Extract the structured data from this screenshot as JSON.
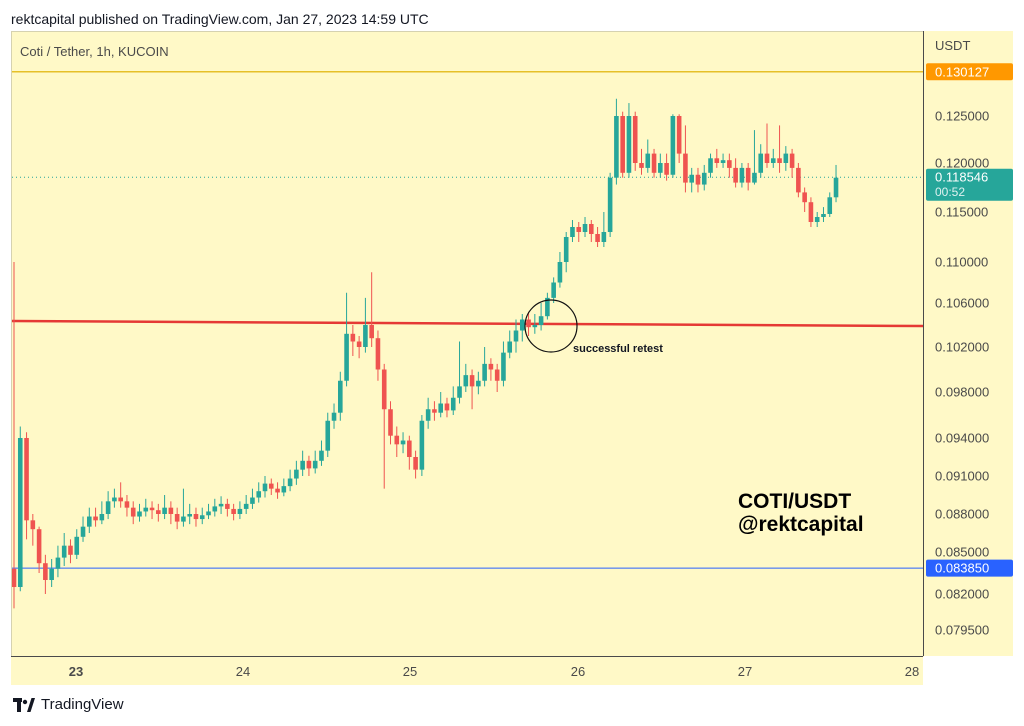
{
  "header": {
    "publisher_line": "rektcapital published on TradingView.com, Jan 27, 2023 14:59 UTC"
  },
  "symbol_line": "Coti / Tether, 1h, KUCOIN",
  "footer": {
    "brand": "TradingView",
    "logo_icon": "tradingview-logo-icon"
  },
  "colors": {
    "background": "#fff9c7",
    "up": "#26a69a",
    "down": "#ef5350",
    "resistance": "#e53935",
    "top_line": "#e6c028",
    "bottom_line": "#2962ff",
    "top_badge": "#ff9800",
    "current_badge": "#26a69a",
    "bottom_badge": "#2962ff"
  },
  "chart_data": {
    "type": "candlestick",
    "title": "Coti / Tether, 1h, KUCOIN",
    "y_axis_label": "USDT",
    "y_ticks": [
      "0.125000",
      "0.120000",
      "0.115000",
      "0.110000",
      "0.106000",
      "0.102000",
      "0.098000",
      "0.094000",
      "0.091000",
      "0.088000",
      "0.085000",
      "0.082000",
      "0.079500"
    ],
    "x_ticks": [
      "23",
      "24",
      "25",
      "26",
      "27",
      "28"
    ],
    "horizontal_lines": [
      {
        "name": "top",
        "value": 0.130127,
        "label": "0.130127"
      },
      {
        "name": "resistance",
        "value": 0.1041
      },
      {
        "name": "bottom",
        "value": 0.08385,
        "label": "0.083850"
      }
    ],
    "current_price": {
      "value": 0.118546,
      "label": "0.118546",
      "countdown": "00:52"
    },
    "annotations": [
      {
        "text": "successful retest"
      },
      {
        "text": "COTI/USDT"
      },
      {
        "text": "@rektcapital"
      }
    ],
    "candles": [
      [
        0.0838,
        0.0825,
        0.11,
        0.081
      ],
      [
        0.0825,
        0.094,
        0.095,
        0.0822
      ],
      [
        0.094,
        0.0875,
        0.0945,
        0.086
      ],
      [
        0.0875,
        0.0868,
        0.088,
        0.0855
      ],
      [
        0.0868,
        0.0842,
        0.087,
        0.0835
      ],
      [
        0.0842,
        0.083,
        0.0848,
        0.082
      ],
      [
        0.083,
        0.0838,
        0.0845,
        0.0825
      ],
      [
        0.0838,
        0.0846,
        0.0855,
        0.0832
      ],
      [
        0.0846,
        0.0855,
        0.0865,
        0.084
      ],
      [
        0.0855,
        0.0848,
        0.086,
        0.0842
      ],
      [
        0.0848,
        0.0862,
        0.0868,
        0.0845
      ],
      [
        0.0862,
        0.087,
        0.0878,
        0.0858
      ],
      [
        0.087,
        0.0878,
        0.0885,
        0.0865
      ],
      [
        0.0878,
        0.0875,
        0.0885,
        0.087
      ],
      [
        0.0875,
        0.088,
        0.089,
        0.0872
      ],
      [
        0.088,
        0.089,
        0.0898,
        0.0876
      ],
      [
        0.089,
        0.0893,
        0.09,
        0.0885
      ],
      [
        0.0893,
        0.089,
        0.0905,
        0.0885
      ],
      [
        0.089,
        0.0885,
        0.0895,
        0.0878
      ],
      [
        0.0885,
        0.0878,
        0.089,
        0.0872
      ],
      [
        0.0878,
        0.0882,
        0.0888,
        0.0874
      ],
      [
        0.0882,
        0.0885,
        0.0892,
        0.0878
      ],
      [
        0.0885,
        0.0883,
        0.089,
        0.0876
      ],
      [
        0.0883,
        0.088,
        0.0888,
        0.0874
      ],
      [
        0.088,
        0.0885,
        0.0895,
        0.0876
      ],
      [
        0.0885,
        0.088,
        0.089,
        0.0872
      ],
      [
        0.088,
        0.0874,
        0.0885,
        0.0868
      ],
      [
        0.0874,
        0.0878,
        0.09,
        0.087
      ],
      [
        0.0878,
        0.088,
        0.0888,
        0.0872
      ],
      [
        0.088,
        0.0876,
        0.0885,
        0.087
      ],
      [
        0.0876,
        0.0879,
        0.0885,
        0.0872
      ],
      [
        0.0879,
        0.0882,
        0.0888,
        0.0876
      ],
      [
        0.0882,
        0.0886,
        0.0892,
        0.0878
      ],
      [
        0.0886,
        0.0888,
        0.0894,
        0.088
      ],
      [
        0.0888,
        0.0884,
        0.0892,
        0.0878
      ],
      [
        0.0884,
        0.088,
        0.0888,
        0.0875
      ],
      [
        0.088,
        0.0884,
        0.089,
        0.0876
      ],
      [
        0.0884,
        0.0888,
        0.0895,
        0.088
      ],
      [
        0.0888,
        0.0893,
        0.09,
        0.0884
      ],
      [
        0.0893,
        0.0898,
        0.0905,
        0.0889
      ],
      [
        0.0898,
        0.0904,
        0.091,
        0.0893
      ],
      [
        0.0904,
        0.09,
        0.0908,
        0.0895
      ],
      [
        0.09,
        0.0897,
        0.0905,
        0.0892
      ],
      [
        0.0897,
        0.0902,
        0.0908,
        0.0894
      ],
      [
        0.0902,
        0.0908,
        0.0915,
        0.0898
      ],
      [
        0.0908,
        0.0915,
        0.0922,
        0.0903
      ],
      [
        0.0915,
        0.0922,
        0.093,
        0.091
      ],
      [
        0.0922,
        0.0916,
        0.0926,
        0.091
      ],
      [
        0.0916,
        0.0922,
        0.093,
        0.0912
      ],
      [
        0.0922,
        0.093,
        0.0938,
        0.0918
      ],
      [
        0.093,
        0.0955,
        0.0962,
        0.0925
      ],
      [
        0.0955,
        0.0962,
        0.097,
        0.0948
      ],
      [
        0.0962,
        0.099,
        0.0998,
        0.0955
      ],
      [
        0.099,
        0.1032,
        0.107,
        0.0985
      ],
      [
        0.1032,
        0.1025,
        0.104,
        0.1012
      ],
      [
        0.1025,
        0.102,
        0.103,
        0.101
      ],
      [
        0.102,
        0.104,
        0.1065,
        0.1015
      ],
      [
        0.104,
        0.1028,
        0.109,
        0.102
      ],
      [
        0.1028,
        0.1,
        0.1035,
        0.099
      ],
      [
        0.1,
        0.0965,
        0.1005,
        0.09
      ],
      [
        0.0965,
        0.0942,
        0.0972,
        0.0935
      ],
      [
        0.0942,
        0.0935,
        0.095,
        0.0925
      ],
      [
        0.0935,
        0.0938,
        0.0945,
        0.0928
      ],
      [
        0.0938,
        0.0925,
        0.0942,
        0.0915
      ],
      [
        0.0925,
        0.0915,
        0.093,
        0.0908
      ],
      [
        0.0915,
        0.0955,
        0.096,
        0.091
      ],
      [
        0.0955,
        0.0965,
        0.0975,
        0.0948
      ],
      [
        0.0965,
        0.0962,
        0.0972,
        0.0955
      ],
      [
        0.0962,
        0.097,
        0.098,
        0.0958
      ],
      [
        0.097,
        0.0964,
        0.0975,
        0.0958
      ],
      [
        0.0964,
        0.0975,
        0.0985,
        0.096
      ],
      [
        0.0975,
        0.0985,
        0.1025,
        0.097
      ],
      [
        0.0985,
        0.0995,
        0.1005,
        0.098
      ],
      [
        0.0995,
        0.0985,
        0.1,
        0.0965
      ],
      [
        0.0985,
        0.099,
        0.0998,
        0.0978
      ],
      [
        0.099,
        0.1005,
        0.102,
        0.0985
      ],
      [
        0.1005,
        0.1,
        0.101,
        0.099
      ],
      [
        0.1,
        0.099,
        0.1005,
        0.098
      ],
      [
        0.099,
        0.1015,
        0.1025,
        0.0985
      ],
      [
        0.1015,
        0.1025,
        0.1035,
        0.101
      ],
      [
        0.1025,
        0.1035,
        0.1045,
        0.1015
      ],
      [
        0.1035,
        0.1045,
        0.105,
        0.1025
      ],
      [
        0.1045,
        0.1038,
        0.1052,
        0.103
      ],
      [
        0.1038,
        0.104,
        0.105,
        0.1032
      ],
      [
        0.104,
        0.1048,
        0.106,
        0.1035
      ],
      [
        0.1048,
        0.1065,
        0.107,
        0.1045
      ],
      [
        0.1065,
        0.108,
        0.1085,
        0.106
      ],
      [
        0.108,
        0.11,
        0.111,
        0.1075
      ],
      [
        0.11,
        0.1125,
        0.113,
        0.109
      ],
      [
        0.1125,
        0.1135,
        0.1142,
        0.112
      ],
      [
        0.1135,
        0.113,
        0.114,
        0.112
      ],
      [
        0.113,
        0.1138,
        0.1145,
        0.1125
      ],
      [
        0.1138,
        0.1128,
        0.1142,
        0.112
      ],
      [
        0.1128,
        0.112,
        0.1135,
        0.1115
      ],
      [
        0.112,
        0.113,
        0.115,
        0.1115
      ],
      [
        0.113,
        0.1185,
        0.119,
        0.1125
      ],
      [
        0.1185,
        0.125,
        0.127,
        0.1178
      ],
      [
        0.125,
        0.119,
        0.1255,
        0.1185
      ],
      [
        0.119,
        0.125,
        0.1265,
        0.1185
      ],
      [
        0.125,
        0.12,
        0.1255,
        0.1192
      ],
      [
        0.12,
        0.1195,
        0.1215,
        0.1188
      ],
      [
        0.1195,
        0.121,
        0.1225,
        0.119
      ],
      [
        0.121,
        0.119,
        0.1215,
        0.1185
      ],
      [
        0.119,
        0.12,
        0.121,
        0.1185
      ],
      [
        0.12,
        0.1188,
        0.121,
        0.1182
      ],
      [
        0.1188,
        0.125,
        0.1252,
        0.1185
      ],
      [
        0.125,
        0.121,
        0.1252,
        0.12
      ],
      [
        0.121,
        0.118,
        0.124,
        0.117
      ],
      [
        0.118,
        0.1188,
        0.1195,
        0.117
      ],
      [
        0.1188,
        0.1178,
        0.1195,
        0.117
      ],
      [
        0.1178,
        0.119,
        0.1198,
        0.1172
      ],
      [
        0.119,
        0.1205,
        0.121,
        0.1185
      ],
      [
        0.1205,
        0.12,
        0.1215,
        0.1195
      ],
      [
        0.12,
        0.1203,
        0.121,
        0.1195
      ],
      [
        0.1203,
        0.1195,
        0.121,
        0.1185
      ],
      [
        0.1195,
        0.118,
        0.1205,
        0.1175
      ],
      [
        0.118,
        0.1195,
        0.12,
        0.1175
      ],
      [
        0.1195,
        0.118,
        0.12,
        0.1172
      ],
      [
        0.118,
        0.119,
        0.1235,
        0.1178
      ],
      [
        0.119,
        0.121,
        0.122,
        0.1185
      ],
      [
        0.121,
        0.12,
        0.1242,
        0.1195
      ],
      [
        0.12,
        0.1205,
        0.1215,
        0.1195
      ],
      [
        0.1205,
        0.12,
        0.124,
        0.119
      ],
      [
        0.12,
        0.121,
        0.1218,
        0.1192
      ],
      [
        0.121,
        0.1195,
        0.1215,
        0.1185
      ],
      [
        0.1195,
        0.117,
        0.12,
        0.1165
      ],
      [
        0.117,
        0.116,
        0.1175,
        0.115
      ],
      [
        0.116,
        0.114,
        0.1165,
        0.1135
      ],
      [
        0.114,
        0.1145,
        0.115,
        0.1135
      ],
      [
        0.1145,
        0.1148,
        0.1155,
        0.114
      ],
      [
        0.1148,
        0.1165,
        0.117,
        0.1145
      ],
      [
        0.1165,
        0.1185,
        0.1198,
        0.116
      ]
    ]
  }
}
